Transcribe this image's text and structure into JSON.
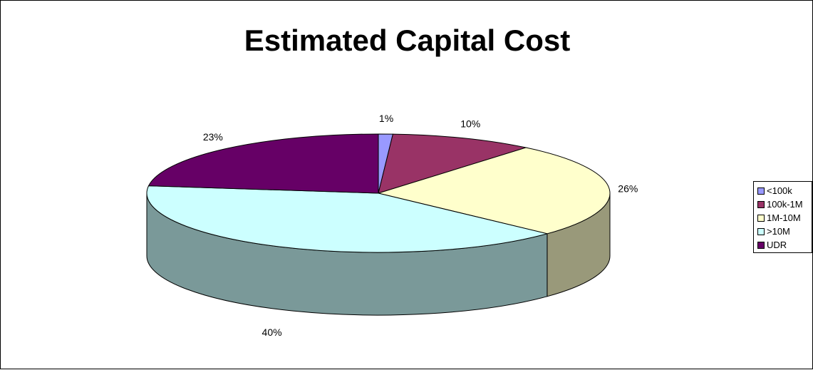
{
  "chart_data": {
    "type": "pie",
    "title": "Estimated Capital Cost",
    "categories": [
      "<100k",
      "100k-1M",
      "1M-10M",
      ">10M",
      "UDR"
    ],
    "values": [
      1,
      10,
      26,
      40,
      23
    ],
    "labels": [
      "1%",
      "10%",
      "26%",
      "40%",
      "23%"
    ],
    "colors": [
      "#9999ff",
      "#993366",
      "#ffffcc",
      "#ccffff",
      "#660066"
    ],
    "side_colors": [
      "#5c5c99",
      "#5c1f3d",
      "#99997a",
      "#7a9999",
      "#3d003d"
    ],
    "three_d": true,
    "legend_position": "right"
  }
}
